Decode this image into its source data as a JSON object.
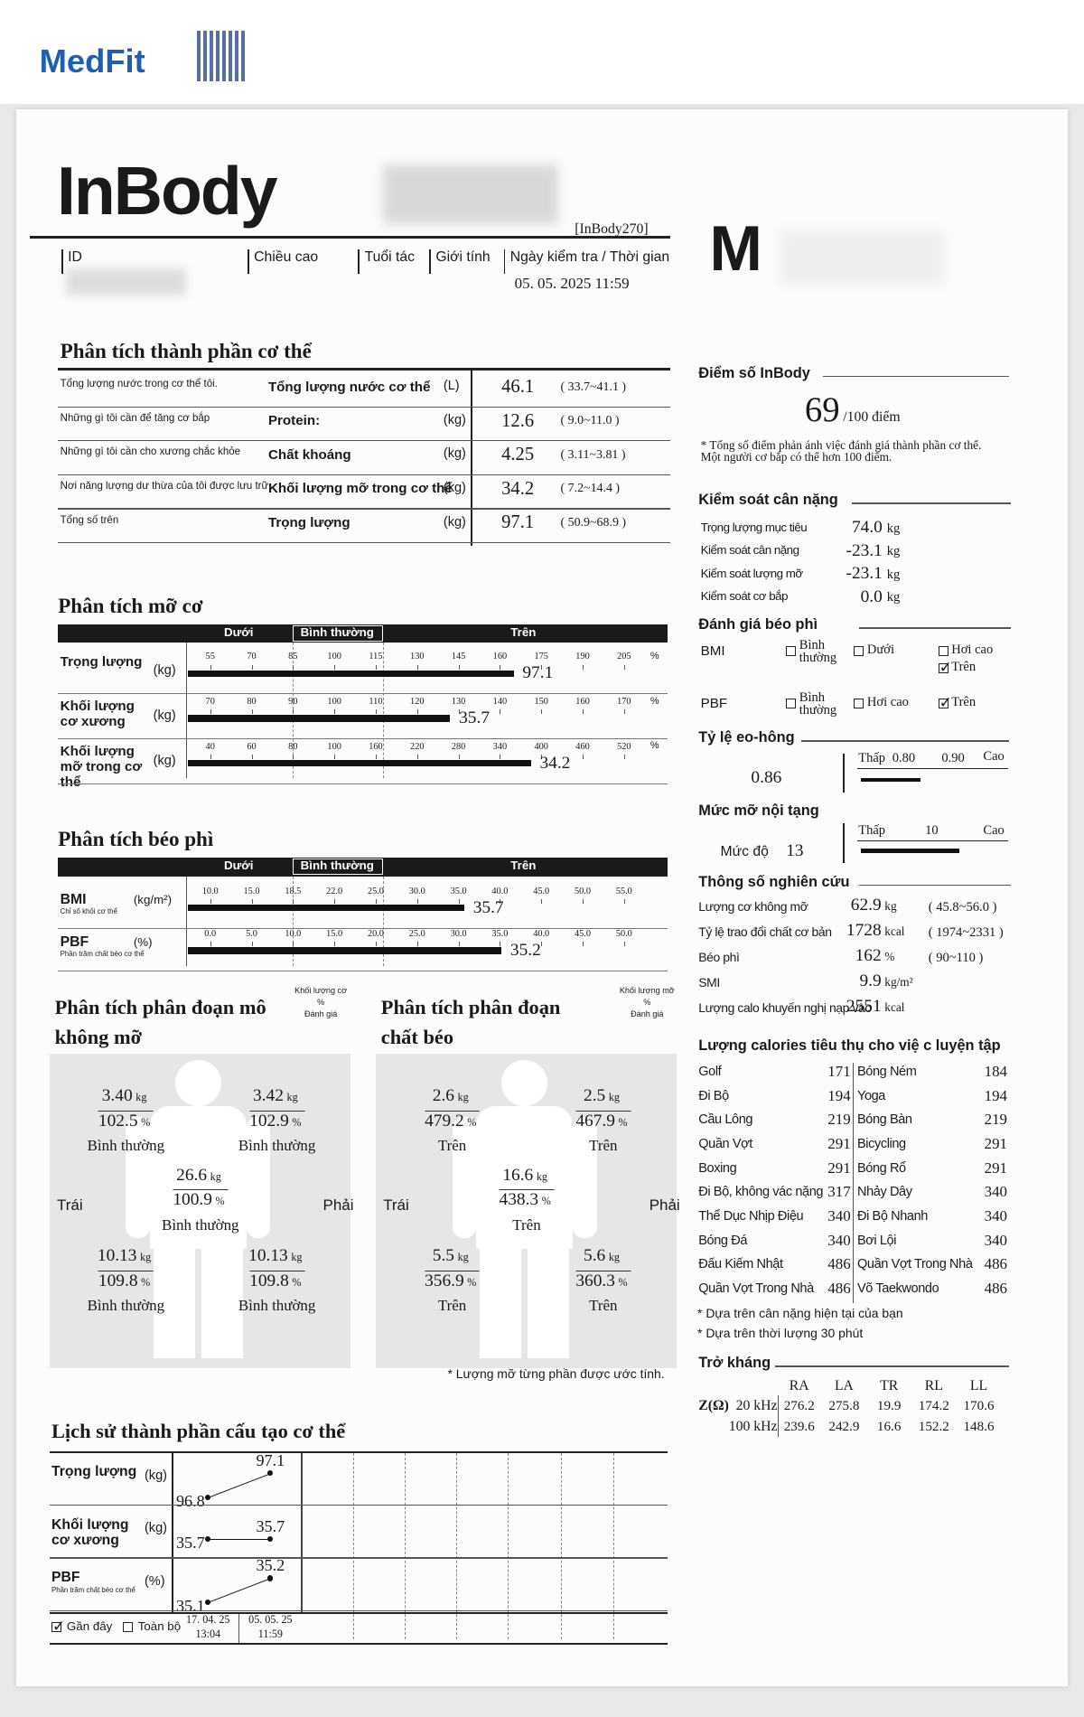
{
  "header": {
    "logo": "MedFit",
    "brand": "InBody",
    "model": "[InBody270]",
    "fields": [
      "ID",
      "Chiều cao",
      "Tuổi tác",
      "Giới tính",
      "Ngày kiểm tra / Thời gian"
    ],
    "datetime": "05. 05. 2025  11:59",
    "watermark": "M"
  },
  "body_composition": {
    "title": "Phân tích thành phần cơ thể",
    "rows": [
      {
        "desc": "Tổng lượng nước trong cơ thể tôi.",
        "name": "Tổng lượng nước cơ thể",
        "unit": "(L)",
        "value": 46.1,
        "range": "( 33.7~41.1 )"
      },
      {
        "desc": "Những gì tôi cần để tăng cơ bắp",
        "name": "Protein:",
        "unit": "(kg)",
        "value": 12.6,
        "range": "( 9.0~11.0 )"
      },
      {
        "desc": "Những gì tôi cần cho xương chắc khỏe",
        "name": "Chất khoáng",
        "unit": "(kg)",
        "value": 4.25,
        "range": "( 3.11~3.81 )"
      },
      {
        "desc": "Nơi năng lượng dư thừa của tôi được lưu trữ",
        "name": "Khối lượng mỡ trong cơ thể",
        "unit": "(kg)",
        "value": 34.2,
        "range": "( 7.2~14.4 )"
      },
      {
        "desc": "Tổng số trên",
        "name": "Trọng lượng",
        "unit": "(kg)",
        "value": 97.1,
        "range": "( 50.9~68.9 )"
      }
    ]
  },
  "muscle_fat": {
    "title": "Phân tích mỡ cơ",
    "scale_labels": [
      "Dưới",
      "Bình thường",
      "Trên"
    ],
    "rows": [
      {
        "name": "Trọng lượng",
        "unit": "(kg)",
        "ticks": [
          55,
          70,
          85,
          100,
          115,
          130,
          145,
          160,
          175,
          190,
          205
        ],
        "tick_unit": "%",
        "value": 97.1,
        "bar_value": 165
      },
      {
        "name": "Khối lượng cơ xương",
        "unit": "(kg)",
        "ticks": [
          70,
          80,
          90,
          100,
          110,
          120,
          130,
          140,
          150,
          160,
          170
        ],
        "tick_unit": "%",
        "value": 35.7,
        "bar_value": 128
      },
      {
        "name": "Khối lượng mỡ trong cơ thể",
        "unit": "(kg)",
        "ticks": [
          40,
          60,
          80,
          100,
          160,
          220,
          280,
          340,
          400,
          460,
          520
        ],
        "tick_unit": "%",
        "value": 34.2,
        "bar_value": 385
      }
    ]
  },
  "obesity": {
    "title": "Phân tích béo phì",
    "scale_labels": [
      "Dưới",
      "Bình thường",
      "Trên"
    ],
    "rows": [
      {
        "name": "BMI",
        "sub": "Chỉ số khối cơ thể",
        "unit": "(kg/m²)",
        "ticks": [
          {
            "value": 10,
            "label": "10.0"
          },
          {
            "value": 15,
            "label": "15.0"
          },
          18.5,
          {
            "value": 22,
            "label": "22.0"
          },
          {
            "value": 25,
            "label": "25.0"
          },
          {
            "value": 30,
            "label": "30.0"
          },
          {
            "value": 35,
            "label": "35.0"
          },
          {
            "value": 40,
            "label": "40.0"
          },
          {
            "value": 45,
            "label": "45.0"
          },
          {
            "value": 50,
            "label": "50.0"
          },
          {
            "value": 55,
            "label": "55.0"
          }
        ],
        "value": 35.7
      },
      {
        "name": "PBF",
        "sub": "Phần trăm chất béo cơ thể",
        "unit": "(%)",
        "ticks": [
          {
            "value": 0,
            "label": "0.0"
          },
          {
            "value": 5,
            "label": "5.0"
          },
          {
            "value": 10,
            "label": "10.0"
          },
          {
            "value": 15,
            "label": "15.0"
          },
          {
            "value": 20,
            "label": "20.0"
          },
          {
            "value": 25,
            "label": "25.0"
          },
          {
            "value": 30,
            "label": "30.0"
          },
          {
            "value": 35,
            "label": "35.0"
          },
          {
            "value": 40,
            "label": "40.0"
          },
          {
            "value": 45,
            "label": "45.0"
          },
          {
            "value": 50,
            "label": "50.0"
          }
        ],
        "value": 35.2
      }
    ]
  },
  "segmental_lean": {
    "title": "Phân tích phân đoạn mô không mỡ",
    "legend": [
      "Khối lượng cơ",
      "%",
      "Đánh giá"
    ],
    "left": "Trái",
    "right": "Phải",
    "unit_kg": "kg",
    "unit_pct": "%",
    "parts": [
      {
        "kg": "3.40",
        "pct": 102.5,
        "eval": "Bình thường"
      },
      {
        "kg": 3.42,
        "pct": 102.9,
        "eval": "Bình thường"
      },
      {
        "kg": 26.6,
        "pct": 100.9,
        "eval": "Bình thường"
      },
      {
        "kg": 10.13,
        "pct": 109.8,
        "eval": "Bình thường"
      },
      {
        "kg": 10.13,
        "pct": 109.8,
        "eval": "Bình thường"
      }
    ]
  },
  "segmental_fat": {
    "title": "Phân tích phân đoạn chất béo",
    "legend": [
      "Khối lượng mỡ",
      "%",
      "Đánh giá"
    ],
    "left": "Trái",
    "right": "Phải",
    "unit_kg": "kg",
    "unit_pct": "%",
    "parts": [
      {
        "kg": 2.6,
        "pct": 479.2,
        "eval": "Trên"
      },
      {
        "kg": 2.5,
        "pct": 467.9,
        "eval": "Trên"
      },
      {
        "kg": 16.6,
        "pct": 438.3,
        "eval": "Trên"
      },
      {
        "kg": 5.5,
        "pct": 356.9,
        "eval": "Trên"
      },
      {
        "kg": 5.6,
        "pct": 360.3,
        "eval": "Trên"
      }
    ],
    "note": "* Lượng mỡ từng phần được ước tính."
  },
  "history": {
    "title": "Lịch sử thành phần cấu tạo cơ thể",
    "rows": [
      {
        "name": "Trọng lượng",
        "unit": "(kg)",
        "values": [
          96.8,
          97.1
        ]
      },
      {
        "name": "Khối lượng cơ xương",
        "unit": "(kg)",
        "values": [
          35.7,
          35.7
        ]
      },
      {
        "name": "PBF",
        "sub": "Phần trăm chất béo cơ thể",
        "unit": "(%)",
        "values": [
          35.1,
          35.2
        ]
      }
    ],
    "options": [
      "Gần đây",
      "Toàn bộ"
    ],
    "checked": 0,
    "dates": [
      {
        "date": "17. 04. 25",
        "time": "13:04"
      },
      {
        "date": "05. 05. 25",
        "time": "11:59"
      }
    ]
  },
  "score": {
    "title": "Điểm số InBody",
    "value": 69,
    "suffix": "/100 điểm",
    "note": "* Tổng số điểm phản ánh việc đánh giá thành phần cơ thể. Một người cơ bắp có thể hơn 100 điểm."
  },
  "weight_control": {
    "title": "Kiểm soát cân nặng",
    "rows": [
      {
        "label": "Trọng lượng mục tiêu",
        "value": "74.0",
        "unit": "kg"
      },
      {
        "label": "Kiểm soát cân nặng",
        "value": -23.1,
        "unit": "kg"
      },
      {
        "label": "Kiểm soát lượng mỡ",
        "value": -23.1,
        "unit": "kg"
      },
      {
        "label": "Kiểm soát cơ bắp",
        "value": "0.0",
        "unit": "kg"
      }
    ]
  },
  "obesity_eval": {
    "title": "Đánh giá béo phì",
    "rows": [
      {
        "name": "BMI",
        "options": [
          "Bình thường",
          "Dưới",
          "Hơi cao",
          "Trên"
        ],
        "checked": 3
      },
      {
        "name": "PBF",
        "options": [
          "Bình thường",
          "Hơi cao",
          "Trên"
        ],
        "checked": 2
      }
    ]
  },
  "whr": {
    "title": "Tỷ lệ eo-hông",
    "value": 0.86,
    "low": "Thấp",
    "ticks": [
      {
        "value": 0.8,
        "label": "0.80"
      },
      {
        "value": 0.9,
        "label": "0.90"
      }
    ],
    "high": "Cao"
  },
  "visceral": {
    "title": "Mức mỡ nội tạng",
    "label": "Mức độ",
    "value": 13,
    "low": "Thấp",
    "ticks": [
      10
    ],
    "high": "Cao"
  },
  "research": {
    "title": "Thông số nghiên cứu",
    "rows": [
      {
        "label": "Lượng cơ không mỡ",
        "value": 62.9,
        "unit": "kg",
        "range": "( 45.8~56.0 )"
      },
      {
        "label": "Tỷ lệ trao đổi chất cơ bản",
        "value": 1728,
        "unit": "kcal",
        "range": "( 1974~2331 )"
      },
      {
        "label": "Béo phì",
        "value": 162,
        "unit": "%",
        "range": "( 90~110 )"
      },
      {
        "label": "SMI",
        "value": 9.9,
        "unit": "kg/m²"
      },
      {
        "label": "Lượng calo khuyến nghị nạp vào",
        "value": 2551,
        "unit": "kcal"
      }
    ]
  },
  "calories": {
    "title": "Lượng calories tiêu thụ cho việ c luyện tập",
    "rows": [
      [
        {
          "name": "Golf",
          "value": 171
        },
        {
          "name": "Bóng Ném",
          "value": 184
        }
      ],
      [
        {
          "name": "Đi Bộ",
          "value": 194
        },
        {
          "name": "Yoga",
          "value": 194
        }
      ],
      [
        {
          "name": "Cầu Lông",
          "value": 219
        },
        {
          "name": "Bóng Bàn",
          "value": 219
        }
      ],
      [
        {
          "name": "Quần Vợt",
          "value": 291
        },
        {
          "name": "Bicycling",
          "value": 291
        }
      ],
      [
        {
          "name": "Boxing",
          "value": 291
        },
        {
          "name": "Bóng Rổ",
          "value": 291
        }
      ],
      [
        {
          "name": "Đi Bộ, không vác nặng",
          "value": 317
        },
        {
          "name": "Nhảy Dây",
          "value": 340
        }
      ],
      [
        {
          "name": "Thể Dục Nhịp Điệu",
          "value": 340
        },
        {
          "name": "Đi Bộ Nhanh",
          "value": 340
        }
      ],
      [
        {
          "name": "Bóng Đá",
          "value": 340
        },
        {
          "name": "Bơi Lội",
          "value": 340
        }
      ],
      [
        {
          "name": "Đấu Kiếm Nhật",
          "value": 486
        },
        {
          "name": "Quần Vợt Trong Nhà",
          "value": 486
        }
      ],
      [
        {
          "name": "Quần Vợt Trong Nhà",
          "value": 486
        },
        {
          "name": "Võ Taekwondo",
          "value": 486
        }
      ]
    ],
    "notes": [
      "* Dựa trên cân nặng hiện tại của bạn",
      "* Dựa trên thời lượng 30 phút"
    ]
  },
  "impedance": {
    "title": "Trở kháng",
    "columns": [
      "RA",
      "LA",
      "TR",
      "RL",
      "LL"
    ],
    "symbol": "Z(Ω)",
    "rows": [
      {
        "freq": "20 kHz",
        "values": [
          276.2,
          275.8,
          19.9,
          174.2,
          170.6
        ]
      },
      {
        "freq": "100 kHz",
        "values": [
          239.6,
          242.9,
          16.6,
          152.2,
          148.6
        ]
      }
    ]
  }
}
